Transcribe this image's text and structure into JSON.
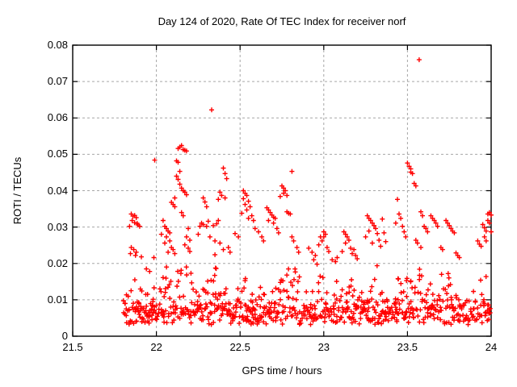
{
  "chart_data": {
    "type": "scatter",
    "title": "Day 124 of 2020, Rate Of TEC Index for receiver norf",
    "xlabel": "GPS time / hours",
    "ylabel": "ROTI / TECUs",
    "xlim": [
      21.5,
      24
    ],
    "ylim": [
      0,
      0.08
    ],
    "xtick_values": [
      21.5,
      22,
      22.5,
      23,
      23.5,
      24
    ],
    "xtick_labels": [
      "21.5",
      "22",
      "22.5",
      "23",
      "23.5",
      "24"
    ],
    "ytick_values": [
      0,
      0.01,
      0.02,
      0.03,
      0.04,
      0.05,
      0.06,
      0.07,
      0.08
    ],
    "ytick_labels": [
      "0",
      "0.01",
      "0.02",
      "0.03",
      "0.04",
      "0.05",
      "0.06",
      "0.07",
      "0.08"
    ],
    "grid": true,
    "legend": "none",
    "marker": "plus",
    "colors": {
      "points": "#ff0000",
      "grid": "#a6a6a6",
      "axis": "#000000",
      "text": "#000000",
      "background": "#ffffff"
    },
    "x_data_range": [
      21.805,
      24.0
    ],
    "series": [
      {
        "name": "ROTI",
        "points": [
          [
            21.84,
            0.0302
          ],
          [
            21.845,
            0.0227
          ],
          [
            21.85,
            0.0336
          ],
          [
            21.85,
            0.0244
          ],
          [
            21.855,
            0.0318
          ],
          [
            21.86,
            0.033
          ],
          [
            21.865,
            0.0238
          ],
          [
            21.87,
            0.0332
          ],
          [
            21.87,
            0.0312
          ],
          [
            21.875,
            0.0222
          ],
          [
            21.88,
            0.0326
          ],
          [
            21.88,
            0.0231
          ],
          [
            21.885,
            0.031
          ],
          [
            21.89,
            0.0306
          ],
          [
            21.9,
            0.0302
          ],
          [
            21.91,
            0.0218
          ],
          [
            21.94,
            0.0185
          ],
          [
            21.96,
            0.0178
          ],
          [
            21.99,
            0.0484
          ],
          [
            21.985,
            0.0216
          ],
          [
            22.03,
            0.028
          ],
          [
            22.04,
            0.0318
          ],
          [
            22.05,
            0.0302
          ],
          [
            22.05,
            0.0256
          ],
          [
            22.06,
            0.0296
          ],
          [
            22.06,
            0.0273
          ],
          [
            22.07,
            0.0289
          ],
          [
            22.07,
            0.0231
          ],
          [
            22.08,
            0.0284
          ],
          [
            22.08,
            0.0262
          ],
          [
            22.09,
            0.0368
          ],
          [
            22.09,
            0.0244
          ],
          [
            22.1,
            0.0362
          ],
          [
            22.1,
            0.0238
          ],
          [
            22.11,
            0.0356
          ],
          [
            22.11,
            0.0227
          ],
          [
            22.11,
            0.038
          ],
          [
            22.12,
            0.0482
          ],
          [
            22.12,
            0.044
          ],
          [
            22.13,
            0.0516
          ],
          [
            22.13,
            0.0478
          ],
          [
            22.13,
            0.0431
          ],
          [
            22.14,
            0.052
          ],
          [
            22.14,
            0.0453
          ],
          [
            22.14,
            0.0418
          ],
          [
            22.15,
            0.0524
          ],
          [
            22.15,
            0.0407
          ],
          [
            22.15,
            0.034
          ],
          [
            22.16,
            0.0513
          ],
          [
            22.16,
            0.04
          ],
          [
            22.16,
            0.0331
          ],
          [
            22.17,
            0.0511
          ],
          [
            22.17,
            0.0396
          ],
          [
            22.17,
            0.0251
          ],
          [
            22.18,
            0.0509
          ],
          [
            22.18,
            0.0389
          ],
          [
            22.18,
            0.0273
          ],
          [
            22.19,
            0.0296
          ],
          [
            22.19,
            0.0242
          ],
          [
            22.2,
            0.0264
          ],
          [
            22.2,
            0.0233
          ],
          [
            22.25,
            0.028
          ],
          [
            22.26,
            0.0302
          ],
          [
            22.27,
            0.0311
          ],
          [
            22.28,
            0.038
          ],
          [
            22.28,
            0.0307
          ],
          [
            22.29,
            0.0369
          ],
          [
            22.3,
            0.0356
          ],
          [
            22.3,
            0.0302
          ],
          [
            22.31,
            0.0316
          ],
          [
            22.32,
            0.0273
          ],
          [
            22.33,
            0.0622
          ],
          [
            22.34,
            0.0304
          ],
          [
            22.35,
            0.0262
          ],
          [
            22.35,
            0.0224
          ],
          [
            22.36,
            0.0309
          ],
          [
            22.37,
            0.0318
          ],
          [
            22.37,
            0.0376
          ],
          [
            22.38,
            0.0396
          ],
          [
            22.38,
            0.0256
          ],
          [
            22.39,
            0.0387
          ],
          [
            22.4,
            0.0462
          ],
          [
            22.4,
            0.0238
          ],
          [
            22.41,
            0.0447
          ],
          [
            22.41,
            0.038
          ],
          [
            22.42,
            0.0433
          ],
          [
            22.43,
            0.0244
          ],
          [
            22.44,
            0.0231
          ],
          [
            22.47,
            0.0282
          ],
          [
            22.49,
            0.0273
          ],
          [
            22.51,
            0.0338
          ],
          [
            22.52,
            0.04
          ],
          [
            22.52,
            0.0378
          ],
          [
            22.53,
            0.0393
          ],
          [
            22.53,
            0.0362
          ],
          [
            22.54,
            0.0387
          ],
          [
            22.54,
            0.0347
          ],
          [
            22.55,
            0.0371
          ],
          [
            22.55,
            0.0324
          ],
          [
            22.56,
            0.0356
          ],
          [
            22.57,
            0.0331
          ],
          [
            22.58,
            0.0318
          ],
          [
            22.59,
            0.0296
          ],
          [
            22.61,
            0.0287
          ],
          [
            22.63,
            0.0273
          ],
          [
            22.64,
            0.0262
          ],
          [
            22.66,
            0.0353
          ],
          [
            22.67,
            0.0347
          ],
          [
            22.67,
            0.0318
          ],
          [
            22.68,
            0.034
          ],
          [
            22.69,
            0.0333
          ],
          [
            22.7,
            0.0327
          ],
          [
            22.7,
            0.0311
          ],
          [
            22.71,
            0.0324
          ],
          [
            22.72,
            0.0296
          ],
          [
            22.73,
            0.0284
          ],
          [
            22.74,
            0.0384
          ],
          [
            22.75,
            0.0413
          ],
          [
            22.76,
            0.0407
          ],
          [
            22.76,
            0.0393
          ],
          [
            22.77,
            0.04
          ],
          [
            22.78,
            0.0387
          ],
          [
            22.78,
            0.0342
          ],
          [
            22.79,
            0.0338
          ],
          [
            22.8,
            0.0336
          ],
          [
            22.81,
            0.0453
          ],
          [
            22.81,
            0.0273
          ],
          [
            22.82,
            0.0262
          ],
          [
            22.84,
            0.0244
          ],
          [
            22.85,
            0.0231
          ],
          [
            22.91,
            0.0242
          ],
          [
            22.93,
            0.0231
          ],
          [
            22.94,
            0.021
          ],
          [
            22.95,
            0.0222
          ],
          [
            22.96,
            0.0198
          ],
          [
            22.97,
            0.0251
          ],
          [
            22.98,
            0.0273
          ],
          [
            22.99,
            0.0262
          ],
          [
            23.0,
            0.0287
          ],
          [
            23.0,
            0.0273
          ],
          [
            23.01,
            0.028
          ],
          [
            23.02,
            0.0244
          ],
          [
            23.03,
            0.0233
          ],
          [
            23.05,
            0.021
          ],
          [
            23.07,
            0.0205
          ],
          [
            23.08,
            0.0216
          ],
          [
            23.11,
            0.0233
          ],
          [
            23.12,
            0.0287
          ],
          [
            23.13,
            0.028
          ],
          [
            23.13,
            0.0256
          ],
          [
            23.14,
            0.0273
          ],
          [
            23.15,
            0.0264
          ],
          [
            23.16,
            0.0242
          ],
          [
            23.17,
            0.0227
          ],
          [
            23.18,
            0.0238
          ],
          [
            23.19,
            0.0222
          ],
          [
            23.2,
            0.0213
          ],
          [
            23.25,
            0.0273
          ],
          [
            23.26,
            0.0331
          ],
          [
            23.27,
            0.0324
          ],
          [
            23.27,
            0.0289
          ],
          [
            23.28,
            0.0318
          ],
          [
            23.29,
            0.0311
          ],
          [
            23.29,
            0.0256
          ],
          [
            23.3,
            0.0304
          ],
          [
            23.31,
            0.0296
          ],
          [
            23.32,
            0.0282
          ],
          [
            23.33,
            0.0264
          ],
          [
            23.34,
            0.0247
          ],
          [
            23.35,
            0.0322
          ],
          [
            23.36,
            0.0284
          ],
          [
            23.37,
            0.026
          ],
          [
            23.43,
            0.0311
          ],
          [
            23.44,
            0.0376
          ],
          [
            23.45,
            0.0336
          ],
          [
            23.46,
            0.0324
          ],
          [
            23.47,
            0.0302
          ],
          [
            23.48,
            0.0287
          ],
          [
            23.49,
            0.0273
          ],
          [
            23.5,
            0.0476
          ],
          [
            23.51,
            0.0467
          ],
          [
            23.52,
            0.046
          ],
          [
            23.52,
            0.0451
          ],
          [
            23.53,
            0.0447
          ],
          [
            23.54,
            0.042
          ],
          [
            23.55,
            0.0413
          ],
          [
            23.55,
            0.0264
          ],
          [
            23.56,
            0.0256
          ],
          [
            23.57,
            0.076
          ],
          [
            23.58,
            0.0342
          ],
          [
            23.58,
            0.0244
          ],
          [
            23.59,
            0.0331
          ],
          [
            23.6,
            0.0302
          ],
          [
            23.61,
            0.0296
          ],
          [
            23.62,
            0.0287
          ],
          [
            23.64,
            0.0331
          ],
          [
            23.65,
            0.0324
          ],
          [
            23.66,
            0.0318
          ],
          [
            23.67,
            0.0311
          ],
          [
            23.68,
            0.0302
          ],
          [
            23.7,
            0.0244
          ],
          [
            23.71,
            0.0238
          ],
          [
            23.73,
            0.0318
          ],
          [
            23.74,
            0.0311
          ],
          [
            23.75,
            0.0304
          ],
          [
            23.76,
            0.0296
          ],
          [
            23.77,
            0.0289
          ],
          [
            23.78,
            0.0284
          ],
          [
            23.79,
            0.0229
          ],
          [
            23.8,
            0.0222
          ],
          [
            23.81,
            0.0216
          ],
          [
            23.92,
            0.0262
          ],
          [
            23.93,
            0.0253
          ],
          [
            23.94,
            0.0247
          ],
          [
            23.95,
            0.0307
          ],
          [
            23.96,
            0.0298
          ],
          [
            23.96,
            0.0273
          ],
          [
            23.97,
            0.0289
          ],
          [
            23.97,
            0.0262
          ],
          [
            23.98,
            0.0336
          ],
          [
            23.98,
            0.0318
          ],
          [
            23.99,
            0.034
          ],
          [
            23.99,
            0.0311
          ],
          [
            24.0,
            0.0333
          ],
          [
            24.0,
            0.0287
          ]
        ],
        "dense_band": {
          "seed": 1337,
          "t_start": 21.805,
          "t_end": 24.0,
          "t_step": 0.00833,
          "min_per_epoch": 2,
          "max_per_epoch": 4,
          "x_jitter": 0.006,
          "y_base": 0.0032,
          "y_uniform": 0.0048,
          "y_tail": 0.004,
          "y_hump_tail": 0.011,
          "tail_power": 3,
          "hump_centers": [
            21.86,
            22.08,
            22.16,
            22.34,
            22.56,
            22.71,
            22.8,
            23.0,
            23.14,
            23.3,
            23.46,
            23.56,
            23.75,
            23.96
          ],
          "hump_width": 0.07
        }
      }
    ]
  }
}
